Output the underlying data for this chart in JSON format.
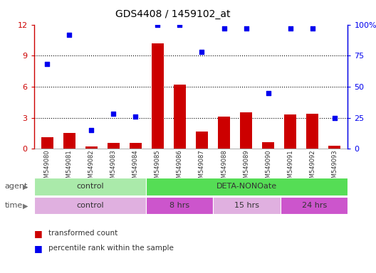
{
  "title": "GDS4408 / 1459102_at",
  "samples": [
    "GSM549080",
    "GSM549081",
    "GSM549082",
    "GSM549083",
    "GSM549084",
    "GSM549085",
    "GSM549086",
    "GSM549087",
    "GSM549088",
    "GSM549089",
    "GSM549090",
    "GSM549091",
    "GSM549092",
    "GSM549093"
  ],
  "bar_values": [
    1.1,
    1.5,
    0.2,
    0.55,
    0.55,
    10.2,
    6.2,
    1.7,
    3.1,
    3.5,
    0.65,
    3.3,
    3.4,
    0.3
  ],
  "scatter_values": [
    68,
    92,
    15,
    28,
    26,
    100,
    100,
    78,
    97,
    97,
    45,
    97,
    97,
    25
  ],
  "ylim_left": [
    0,
    12
  ],
  "ylim_right": [
    0,
    100
  ],
  "yticks_left": [
    0,
    3,
    6,
    9,
    12
  ],
  "yticks_right": [
    0,
    25,
    50,
    75,
    100
  ],
  "ytick_labels_right": [
    "0",
    "25",
    "50",
    "75",
    "100%"
  ],
  "bar_color": "#cc0000",
  "scatter_color": "#0000ee",
  "agent_groups": [
    {
      "label": "control",
      "start": 0,
      "end": 5,
      "color": "#aaeaaa"
    },
    {
      "label": "DETA-NONOate",
      "start": 5,
      "end": 14,
      "color": "#55dd55"
    }
  ],
  "time_groups": [
    {
      "label": "control",
      "start": 0,
      "end": 5,
      "color": "#e0b0e0"
    },
    {
      "label": "8 hrs",
      "start": 5,
      "end": 8,
      "color": "#cc55cc"
    },
    {
      "label": "15 hrs",
      "start": 8,
      "end": 11,
      "color": "#e0b0e0"
    },
    {
      "label": "24 hrs",
      "start": 11,
      "end": 14,
      "color": "#cc55cc"
    }
  ],
  "legend_items": [
    {
      "label": "transformed count",
      "color": "#cc0000"
    },
    {
      "label": "percentile rank within the sample",
      "color": "#0000ee"
    }
  ],
  "agent_label": "agent",
  "time_label": "time",
  "background_color": "#ffffff",
  "tick_label_color_left": "#cc0000",
  "tick_label_color_right": "#0000ee",
  "title_color": "#000000",
  "grid_color": "#000000"
}
